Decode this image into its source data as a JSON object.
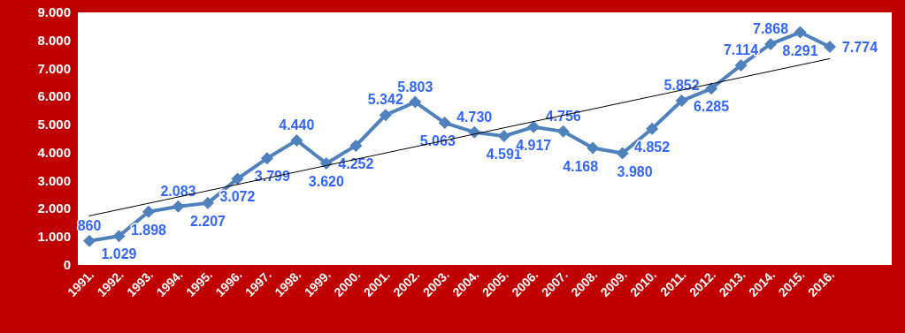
{
  "chart_data": {
    "type": "line",
    "categories": [
      "1991.",
      "1992.",
      "1993.",
      "1994.",
      "1995.",
      "1996.",
      "1997.",
      "1998.",
      "1999.",
      "2000.",
      "2001.",
      "2002.",
      "2003.",
      "2004.",
      "2005.",
      "2006.",
      "2007.",
      "2008.",
      "2009.",
      "2010.",
      "2011.",
      "2012.",
      "2013.",
      "2014.",
      "2015.",
      "2016."
    ],
    "series": [
      {
        "color": "#4f81bd",
        "marker": "diamond",
        "values": [
          860,
          1029,
          1898,
          2083,
          2207,
          3072,
          3799,
          4440,
          3620,
          4252,
          5342,
          5803,
          5063,
          4730,
          4591,
          4917,
          4756,
          4168,
          3980,
          4852,
          5852,
          6285,
          7114,
          7868,
          8291,
          7774
        ],
        "value_labels": [
          "860",
          "1.029",
          "1.898",
          "2.083",
          "2.207",
          "3.072",
          "3.799",
          "4.440",
          "3.620",
          "4.252",
          "5.342",
          "5.803",
          "5.063",
          "4.730",
          "4.591",
          "4.917",
          "4.756",
          "4.168",
          "3.980",
          "4.852",
          "5.852",
          "6.285",
          "7.114",
          "7.868",
          "8.291",
          "7.774"
        ]
      },
      {
        "type": "line",
        "color": "#000000",
        "marker": "none",
        "x": [
          "1991.",
          "2016."
        ],
        "values": [
          1750,
          7350
        ]
      }
    ],
    "ylim": [
      0,
      9000
    ],
    "yticks": [
      {
        "value": 0,
        "label": "0"
      },
      {
        "value": 1000,
        "label": "1.000"
      },
      {
        "value": 2000,
        "label": "2.000"
      },
      {
        "value": 3000,
        "label": "3.000"
      },
      {
        "value": 4000,
        "label": "4.000"
      },
      {
        "value": 5000,
        "label": "5.000"
      },
      {
        "value": 6000,
        "label": "6.000"
      },
      {
        "value": 7000,
        "label": "7.000"
      },
      {
        "value": 8000,
        "label": "8.000"
      },
      {
        "value": 9000,
        "label": "9.000"
      }
    ],
    "grid": false
  }
}
